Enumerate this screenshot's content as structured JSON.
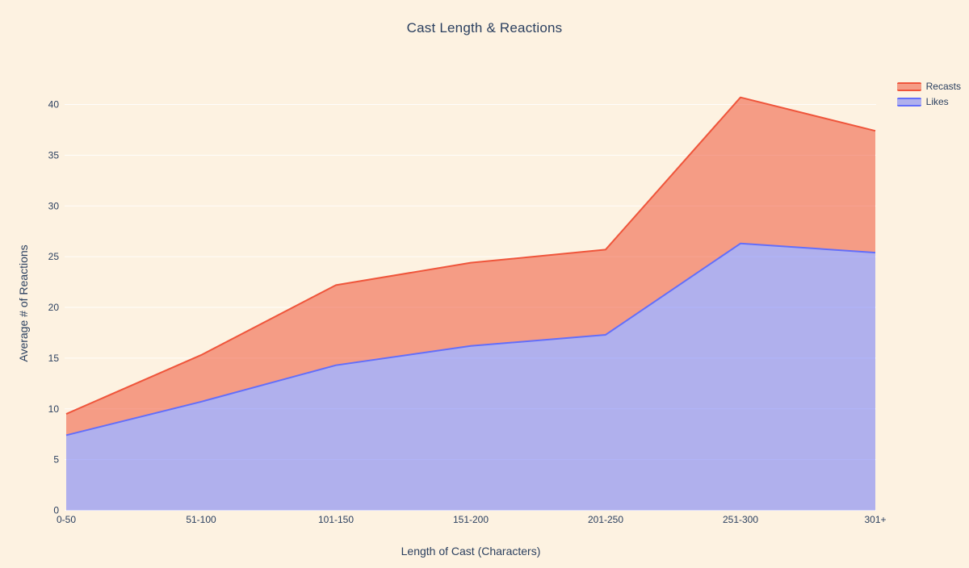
{
  "page": {
    "background_color": "#FDF2E1",
    "text_color": "#2A3F5F"
  },
  "chart_data": {
    "type": "area",
    "title": "Cast Length & Reactions",
    "xlabel": "Length of Cast (Characters)",
    "ylabel": "Average # of Reactions",
    "categories": [
      "0-50",
      "51-100",
      "101-150",
      "151-200",
      "201-250",
      "251-300",
      "301+"
    ],
    "series": [
      {
        "name": "Recasts",
        "line_color": "#EF553B",
        "fill_color": "rgba(239,85,59,0.55)",
        "values": [
          9.5,
          15.3,
          22.2,
          24.4,
          25.7,
          40.7,
          37.4
        ],
        "note": "top boundary as rendered; salmon band fills between Likes line and this line"
      },
      {
        "name": "Likes",
        "line_color": "#636EFA",
        "fill_color": "rgba(99,110,250,0.5)",
        "values": [
          7.4,
          10.7,
          14.3,
          16.2,
          17.3,
          26.3,
          25.4
        ],
        "note": "area fills from this line down to zero"
      }
    ],
    "ylim": [
      0,
      40
    ],
    "yticks": [
      0,
      5,
      10,
      15,
      20,
      25,
      30,
      35,
      40
    ],
    "grid": "faint white horizontal gridlines at each y tick",
    "legend_position": "top-right",
    "legend": [
      "Recasts",
      "Likes"
    ]
  }
}
